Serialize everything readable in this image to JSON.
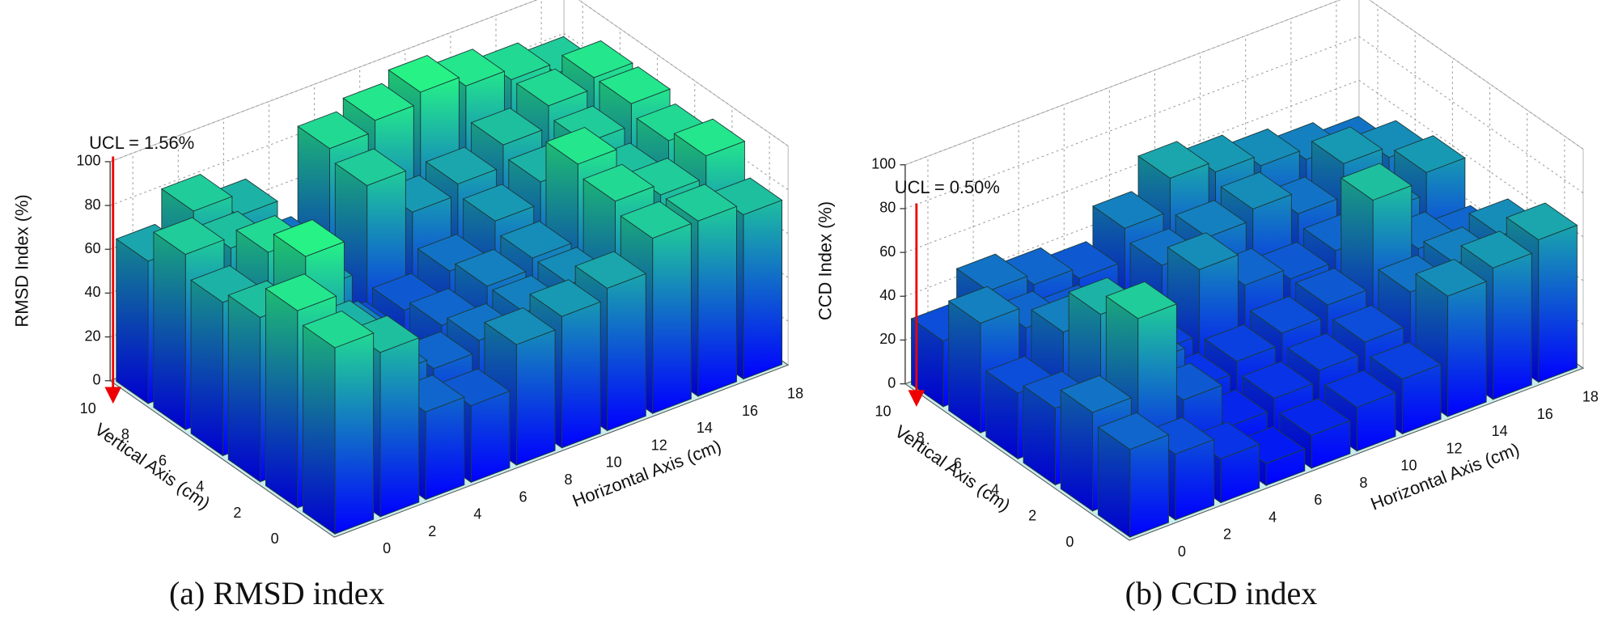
{
  "chart_data": [
    {
      "type": "bar3d",
      "caption": "(a) RMSD index",
      "zlabel": "RMSD Index (%)",
      "xlabel": "Horizontal Axis (cm)",
      "ylabel": "Vertical Axis (cm)",
      "annotation": "UCL = 1.56%",
      "xticks": [
        0,
        2,
        4,
        6,
        8,
        10,
        12,
        14,
        16,
        18
      ],
      "yticks": [
        0,
        2,
        4,
        6,
        8,
        10
      ],
      "zlim": [
        0,
        100
      ],
      "zticks": [
        0,
        20,
        40,
        60,
        80,
        100
      ],
      "grid": true,
      "values": [
        [
          85,
          75,
          40,
          35,
          55,
          60,
          65,
          80,
          80,
          75
        ],
        [
          90,
          70,
          45,
          40,
          45,
          50,
          55,
          85,
          80,
          90
        ],
        [
          75,
          95,
          50,
          30,
          40,
          50,
          55,
          90,
          75,
          85
        ],
        [
          70,
          85,
          60,
          30,
          35,
          45,
          60,
          70,
          80,
          90
        ],
        [
          80,
          75,
          55,
          20,
          80,
          60,
          65,
          75,
          85,
          90
        ],
        [
          65,
          80,
          70,
          45,
          85,
          90,
          95,
          90,
          85,
          80
        ]
      ]
    },
    {
      "type": "bar3d",
      "caption": "(b) CCD index",
      "zlabel": "CCD Index (%)",
      "xlabel": "Horizontal Axis (cm)",
      "ylabel": "Vertical Axis (cm)",
      "annotation": "UCL = 0.50%",
      "xticks": [
        0,
        2,
        4,
        6,
        8,
        10,
        12,
        14,
        16,
        18
      ],
      "yticks": [
        0,
        2,
        4,
        6,
        8,
        10
      ],
      "zlim": [
        0,
        100
      ],
      "zticks": [
        0,
        20,
        40,
        60,
        80,
        100
      ],
      "grid": true,
      "values": [
        [
          40,
          30,
          20,
          10,
          15,
          20,
          25,
          55,
          60,
          65
        ],
        [
          45,
          80,
          35,
          15,
          20,
          25,
          30,
          45,
          50,
          55
        ],
        [
          35,
          70,
          40,
          20,
          25,
          30,
          35,
          75,
          45,
          40
        ],
        [
          30,
          50,
          45,
          25,
          55,
          40,
          35,
          40,
          50,
          60
        ],
        [
          50,
          40,
          35,
          10,
          45,
          50,
          55,
          45,
          60,
          55
        ],
        [
          30,
          45,
          40,
          35,
          50,
          65,
          60,
          55,
          50,
          45
        ]
      ]
    }
  ]
}
